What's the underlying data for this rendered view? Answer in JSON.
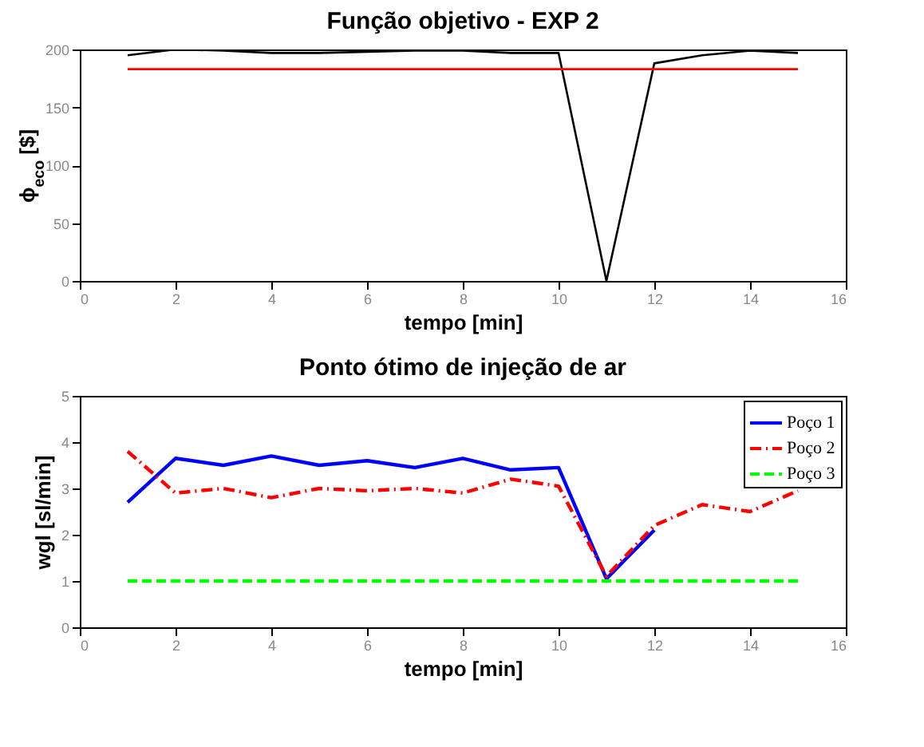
{
  "chart_data": [
    {
      "type": "line",
      "title": "Função objetivo - EXP 2",
      "xlabel": "tempo [min]",
      "ylabel": "ϕ$_{eco}$ [$]",
      "x": [
        1,
        2,
        3,
        4,
        5,
        6,
        7,
        8,
        9,
        10,
        11,
        12,
        13,
        14,
        15
      ],
      "series": [
        {
          "color": "#000000",
          "values": [
            195,
            200,
            199,
            197,
            197,
            198,
            199,
            199,
            197,
            197,
            0,
            188,
            195,
            199,
            197
          ]
        },
        {
          "color": "#ff0000",
          "values": [
            183,
            183,
            183,
            183,
            183,
            183,
            183,
            183,
            183,
            183,
            183,
            183,
            183,
            183,
            183
          ]
        }
      ],
      "xlim": [
        0,
        16
      ],
      "xticks": [
        0,
        2,
        4,
        6,
        8,
        10,
        12,
        14,
        16
      ],
      "ylim": [
        0,
        200
      ],
      "yticks": [
        0,
        50,
        100,
        150,
        200
      ],
      "grid": false,
      "legend": false
    },
    {
      "type": "line",
      "title": "Ponto ótimo de injeção de ar",
      "xlabel": "tempo [min]",
      "ylabel": "wgl [sl/min]",
      "x": [
        1,
        2,
        3,
        4,
        5,
        6,
        7,
        8,
        9,
        10,
        11,
        12,
        13,
        14,
        15
      ],
      "series": [
        {
          "name": "Poço 1",
          "color": "#0000ff",
          "line_style": "solid",
          "values": [
            2.7,
            3.65,
            3.5,
            3.7,
            3.5,
            3.6,
            3.45,
            3.65,
            3.4,
            3.45,
            1.05,
            2.1,
            null,
            null,
            null
          ]
        },
        {
          "name": "Poço 2",
          "color": "#ff0000",
          "line_style": "dashdot",
          "values": [
            3.8,
            2.9,
            3.0,
            2.8,
            3.0,
            2.95,
            3.0,
            2.9,
            3.2,
            3.05,
            1.1,
            2.2,
            2.65,
            2.5,
            2.95
          ]
        },
        {
          "name": "Poço 3",
          "color": "#00ff00",
          "line_style": "dashed",
          "values": [
            1,
            1,
            1,
            1,
            1,
            1,
            1,
            1,
            1,
            1,
            1,
            1,
            1,
            1,
            1
          ]
        }
      ],
      "xlim": [
        0,
        16
      ],
      "xticks": [
        0,
        2,
        4,
        6,
        8,
        10,
        12,
        14,
        16
      ],
      "ylim": [
        0,
        5
      ],
      "yticks": [
        0,
        1,
        2,
        3,
        4,
        5
      ],
      "grid": false,
      "legend": "top right"
    }
  ]
}
